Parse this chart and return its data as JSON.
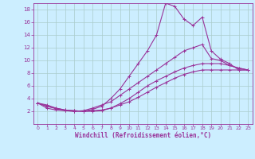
{
  "xlabel": "Windchill (Refroidissement éolien,°C)",
  "background_color": "#cceeff",
  "line_color": "#993399",
  "grid_color": "#aacccc",
  "xlim": [
    -0.5,
    23.5
  ],
  "ylim": [
    0,
    19
  ],
  "xticks": [
    0,
    1,
    2,
    3,
    4,
    5,
    6,
    7,
    8,
    9,
    10,
    11,
    12,
    13,
    14,
    15,
    16,
    17,
    18,
    19,
    20,
    21,
    22,
    23
  ],
  "yticks": [
    2,
    4,
    6,
    8,
    10,
    12,
    14,
    16,
    18
  ],
  "line1_x": [
    0,
    1,
    2,
    3,
    4,
    5,
    6,
    7,
    8,
    9,
    10,
    11,
    12,
    13,
    14,
    15,
    16,
    17,
    18,
    19,
    20,
    21,
    22,
    23
  ],
  "line1_y": [
    3.3,
    3.0,
    2.5,
    2.2,
    2.1,
    2.0,
    2.3,
    2.8,
    4.0,
    5.5,
    7.5,
    9.5,
    11.5,
    14.0,
    19.0,
    18.5,
    16.5,
    15.5,
    16.8,
    11.5,
    10.2,
    9.5,
    8.5,
    8.5
  ],
  "line2_x": [
    0,
    1,
    2,
    3,
    4,
    5,
    6,
    7,
    8,
    9,
    10,
    11,
    12,
    13,
    14,
    15,
    16,
    17,
    18,
    19,
    20,
    21,
    22,
    23
  ],
  "line2_y": [
    3.3,
    2.8,
    2.4,
    2.1,
    2.0,
    2.1,
    2.5,
    3.0,
    3.5,
    4.5,
    5.5,
    6.5,
    7.5,
    8.5,
    9.5,
    10.5,
    11.5,
    12.0,
    12.5,
    10.3,
    10.0,
    9.2,
    8.8,
    8.5
  ],
  "line3_x": [
    0,
    1,
    2,
    3,
    4,
    5,
    6,
    7,
    8,
    9,
    10,
    11,
    12,
    13,
    14,
    15,
    16,
    17,
    18,
    19,
    20,
    21,
    22,
    23
  ],
  "line3_y": [
    3.3,
    2.5,
    2.2,
    2.1,
    2.0,
    2.0,
    2.1,
    2.2,
    2.5,
    3.0,
    3.5,
    4.2,
    5.0,
    5.8,
    6.5,
    7.2,
    7.8,
    8.2,
    8.5,
    8.5,
    8.5,
    8.5,
    8.5,
    8.5
  ],
  "line4_x": [
    0,
    1,
    2,
    3,
    4,
    5,
    6,
    7,
    8,
    9,
    10,
    11,
    12,
    13,
    14,
    15,
    16,
    17,
    18,
    19,
    20,
    21,
    22,
    23
  ],
  "line4_y": [
    3.3,
    2.8,
    2.5,
    2.2,
    2.1,
    2.0,
    2.0,
    2.1,
    2.5,
    3.2,
    4.0,
    5.0,
    6.0,
    6.8,
    7.5,
    8.2,
    8.8,
    9.2,
    9.5,
    9.5,
    9.5,
    9.2,
    8.8,
    8.5
  ]
}
